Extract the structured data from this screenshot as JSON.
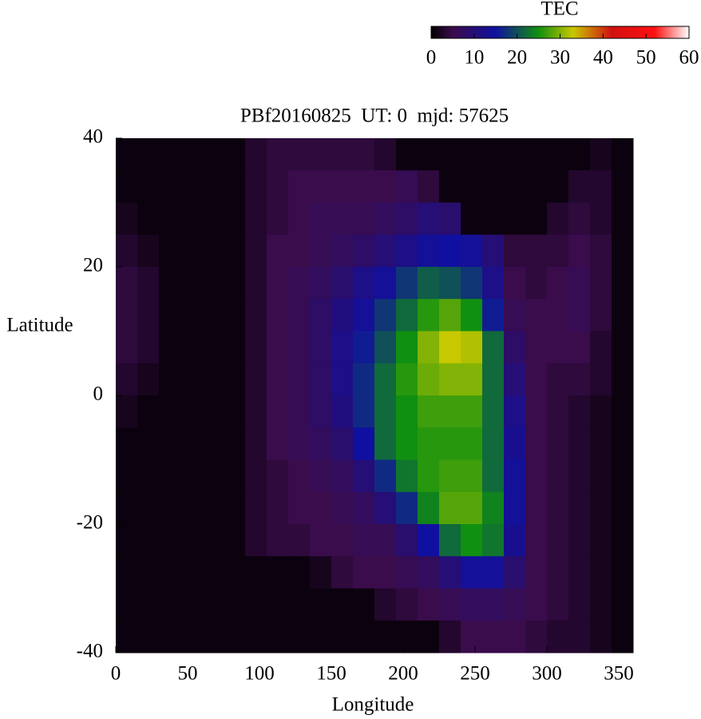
{
  "chart_data": {
    "type": "heatmap",
    "title": "PBf20160825  UT: 0  mjd: 57625",
    "xlabel": "Longitude",
    "ylabel": "Latitude",
    "colorbar_label": "TEC",
    "xlim": [
      0,
      360
    ],
    "ylim": [
      -40,
      40
    ],
    "xticks": [
      0,
      50,
      100,
      150,
      200,
      250,
      300,
      350
    ],
    "yticks": [
      -40,
      -20,
      0,
      20,
      40
    ],
    "clim": [
      0,
      60
    ],
    "cticks": [
      0,
      10,
      20,
      30,
      40,
      50,
      60
    ],
    "colorscale": [
      [
        0,
        "#000000"
      ],
      [
        5,
        "#3a0c4c"
      ],
      [
        15,
        "#1010a0"
      ],
      [
        25,
        "#109010"
      ],
      [
        33,
        "#c8c800"
      ],
      [
        42,
        "#d01010"
      ],
      [
        52,
        "#ff1010"
      ],
      [
        60,
        "#ffffff"
      ]
    ],
    "xbins": [
      0,
      15,
      30,
      45,
      60,
      75,
      90,
      105,
      120,
      135,
      150,
      165,
      180,
      195,
      210,
      225,
      240,
      255,
      270,
      285,
      300,
      315,
      330,
      345,
      360
    ],
    "ybins": [
      40,
      35,
      30,
      25,
      20,
      15,
      10,
      5,
      0,
      -5,
      -10,
      -15,
      -20,
      -25,
      -30,
      -35,
      -40
    ],
    "z": [
      [
        1,
        1,
        1,
        1,
        1,
        1,
        3,
        4,
        4,
        4,
        4,
        4,
        3,
        1,
        1,
        1,
        1,
        1,
        1,
        1,
        1,
        1,
        2,
        1
      ],
      [
        1,
        1,
        1,
        1,
        1,
        1,
        3,
        4,
        5,
        5,
        5,
        5,
        5,
        6,
        4,
        1,
        1,
        1,
        1,
        1,
        1,
        3,
        3,
        1
      ],
      [
        2,
        1,
        1,
        1,
        1,
        1,
        3,
        4,
        5,
        6,
        6,
        6,
        7,
        8,
        10,
        9,
        1,
        1,
        1,
        1,
        3,
        4,
        3,
        1
      ],
      [
        3,
        2,
        1,
        1,
        1,
        1,
        3,
        5,
        5,
        6,
        7,
        8,
        10,
        12,
        14,
        15,
        14,
        10,
        4,
        4,
        4,
        5,
        4,
        1
      ],
      [
        4,
        3,
        1,
        1,
        1,
        1,
        3,
        5,
        6,
        7,
        9,
        12,
        14,
        18,
        21,
        20,
        18,
        12,
        5,
        4,
        5,
        6,
        4,
        1
      ],
      [
        4,
        3,
        1,
        1,
        1,
        1,
        3,
        5,
        6,
        8,
        11,
        14,
        18,
        22,
        26,
        28,
        25,
        16,
        6,
        5,
        5,
        6,
        4,
        1
      ],
      [
        4,
        3,
        1,
        1,
        1,
        1,
        3,
        5,
        6,
        8,
        12,
        16,
        20,
        25,
        30,
        33,
        32,
        22,
        8,
        5,
        5,
        5,
        3,
        1
      ],
      [
        3,
        2,
        1,
        1,
        1,
        1,
        3,
        5,
        6,
        8,
        12,
        17,
        22,
        26,
        29,
        30,
        30,
        22,
        10,
        5,
        4,
        4,
        3,
        1
      ],
      [
        2,
        1,
        1,
        1,
        1,
        1,
        3,
        5,
        6,
        8,
        11,
        17,
        22,
        25,
        27,
        27,
        27,
        22,
        12,
        5,
        4,
        3,
        2,
        1
      ],
      [
        1,
        1,
        1,
        1,
        1,
        1,
        3,
        5,
        6,
        7,
        9,
        15,
        22,
        25,
        26,
        26,
        26,
        22,
        13,
        5,
        4,
        3,
        2,
        1
      ],
      [
        1,
        1,
        1,
        1,
        1,
        1,
        3,
        4,
        5,
        6,
        7,
        10,
        17,
        23,
        26,
        27,
        27,
        22,
        14,
        5,
        4,
        3,
        2,
        1
      ],
      [
        1,
        1,
        1,
        1,
        1,
        1,
        3,
        4,
        5,
        5,
        6,
        7,
        10,
        17,
        24,
        28,
        28,
        24,
        14,
        5,
        4,
        3,
        2,
        1
      ],
      [
        1,
        1,
        1,
        1,
        1,
        1,
        3,
        4,
        4,
        5,
        5,
        6,
        6,
        9,
        15,
        22,
        25,
        23,
        13,
        5,
        4,
        3,
        2,
        1
      ],
      [
        1,
        1,
        1,
        1,
        1,
        1,
        1,
        1,
        1,
        2,
        4,
        5,
        5,
        6,
        7,
        10,
        14,
        14,
        9,
        5,
        4,
        3,
        2,
        1
      ],
      [
        1,
        1,
        1,
        1,
        1,
        1,
        1,
        1,
        1,
        1,
        1,
        1,
        3,
        4,
        5,
        6,
        7,
        7,
        6,
        5,
        4,
        3,
        2,
        1
      ],
      [
        1,
        1,
        1,
        1,
        1,
        1,
        1,
        1,
        1,
        1,
        1,
        1,
        1,
        1,
        1,
        3,
        5,
        5,
        5,
        4,
        3,
        3,
        2,
        1
      ]
    ]
  }
}
